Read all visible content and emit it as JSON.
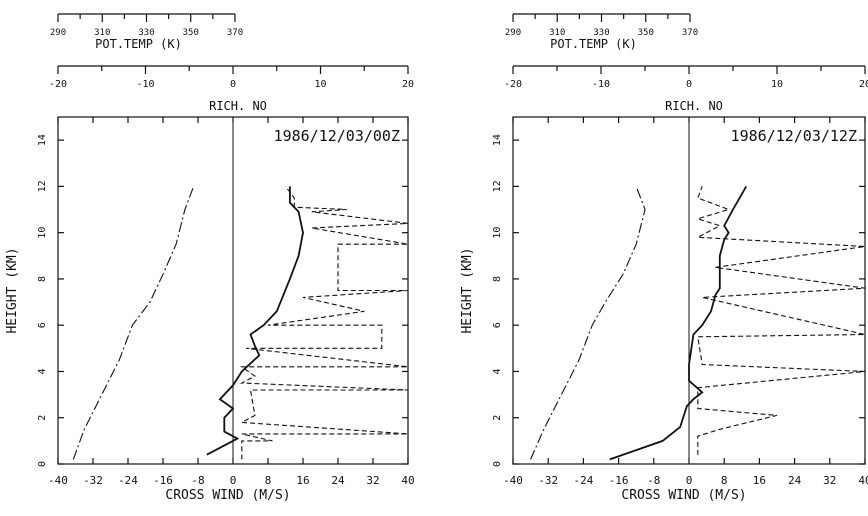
{
  "chart_data": [
    {
      "type": "line",
      "panel": "left",
      "date_label": "1986/12/03/00Z",
      "top_axes": [
        {
          "label": "POT.TEMP (K)",
          "range": [
            290,
            370
          ],
          "ticks": [
            "290",
            "310",
            "330",
            "350",
            "370"
          ]
        },
        {
          "label": "RICH. NO",
          "range": [
            -20,
            20
          ],
          "ticks": [
            "-20",
            "-10",
            "0",
            "10",
            "20"
          ]
        }
      ],
      "xlabel": "CROSS WIND (M/S)",
      "ylabel": "HEIGHT (KM)",
      "xlim": [
        -40,
        40
      ],
      "ylim": [
        0,
        15
      ],
      "x_ticks": [
        "-40",
        "-32",
        "-24",
        "-16",
        "-8",
        "0",
        "8",
        "16",
        "24",
        "32",
        "40"
      ],
      "y_ticks": [
        "0",
        "2",
        "4",
        "6",
        "8",
        "10",
        "12",
        "14"
      ],
      "series": [
        {
          "style": "dash-dot",
          "x": [
            -36.5,
            -34,
            -30,
            -26,
            -23,
            -19,
            -16,
            -13,
            -11,
            -9
          ],
          "y": [
            0.2,
            1.5,
            3,
            4.5,
            6,
            7,
            8.2,
            9.5,
            11,
            12
          ]
        },
        {
          "style": "solid",
          "x": [
            -6,
            -3,
            1,
            -2,
            -2,
            0,
            -3,
            0,
            2,
            6,
            5,
            4,
            7,
            10,
            13,
            15,
            16,
            15,
            13,
            13
          ],
          "y": [
            0.4,
            0.7,
            1.1,
            1.4,
            2.0,
            2.4,
            2.8,
            3.4,
            4.0,
            4.7,
            5.1,
            5.6,
            6.0,
            6.6,
            8.0,
            9.0,
            10.0,
            10.9,
            11.3,
            12.0
          ]
        },
        {
          "style": "dashed",
          "x": [
            2,
            2,
            9,
            2,
            40,
            2,
            5,
            4,
            40,
            2,
            5,
            2,
            40,
            3,
            34,
            34,
            8,
            30,
            16,
            40,
            24,
            24,
            40,
            18,
            40,
            18,
            26,
            14,
            14,
            12
          ],
          "y": [
            0.2,
            1.0,
            1.0,
            1.3,
            1.3,
            1.8,
            2.1,
            3.2,
            3.2,
            3.5,
            3.8,
            4.2,
            4.2,
            5.0,
            5.0,
            6.0,
            6.0,
            6.6,
            7.2,
            7.5,
            7.5,
            9.5,
            9.5,
            10.2,
            10.4,
            10.9,
            11.0,
            11.1,
            11.5,
            12.0
          ]
        }
      ]
    },
    {
      "type": "line",
      "panel": "right",
      "date_label": "1986/12/03/12Z",
      "top_axes": [
        {
          "label": "POT.TEMP (K)",
          "range": [
            290,
            370
          ],
          "ticks": [
            "290",
            "310",
            "330",
            "350",
            "370"
          ]
        },
        {
          "label": "RICH. NO",
          "range": [
            -20,
            20
          ],
          "ticks": [
            "-20",
            "-10",
            "0",
            "10",
            "20"
          ]
        }
      ],
      "xlabel": "CROSS WIND (M/S)",
      "ylabel": "HEIGHT (KM)",
      "xlim": [
        -40,
        40
      ],
      "ylim": [
        0,
        15
      ],
      "x_ticks": [
        "-40",
        "-32",
        "-24",
        "-16",
        "-8",
        "0",
        "8",
        "16",
        "24",
        "32",
        "40"
      ],
      "y_ticks": [
        "0",
        "2",
        "4",
        "6",
        "8",
        "10",
        "12",
        "14"
      ],
      "series": [
        {
          "style": "dash-dot",
          "x": [
            -36,
            -33,
            -29,
            -25,
            -22,
            -19,
            -15,
            -12,
            -10,
            -12
          ],
          "y": [
            0.2,
            1.5,
            3,
            4.5,
            6,
            7,
            8.2,
            9.5,
            11,
            12
          ]
        },
        {
          "style": "solid",
          "x": [
            -18,
            -12,
            -6,
            -2,
            -0.5,
            1,
            3,
            0,
            0,
            1,
            3,
            5,
            6,
            7,
            7,
            8,
            9,
            8,
            10,
            13
          ],
          "y": [
            0.2,
            0.6,
            1.0,
            1.6,
            2.5,
            2.8,
            3.1,
            3.6,
            4.3,
            5.6,
            6.0,
            6.6,
            7.3,
            7.6,
            9.0,
            9.7,
            10.0,
            10.3,
            11.0,
            12.0
          ]
        },
        {
          "style": "dashed",
          "x": [
            2,
            2,
            7,
            20,
            2,
            2,
            40,
            3,
            2,
            40,
            3,
            40,
            6,
            40,
            2,
            7,
            2,
            9,
            2,
            3
          ],
          "y": [
            0.4,
            1.2,
            1.5,
            2.1,
            2.4,
            3.3,
            4.0,
            4.3,
            5.5,
            5.6,
            7.2,
            7.6,
            8.5,
            9.4,
            9.8,
            10.3,
            10.6,
            11.0,
            11.5,
            12.0
          ]
        }
      ]
    }
  ]
}
